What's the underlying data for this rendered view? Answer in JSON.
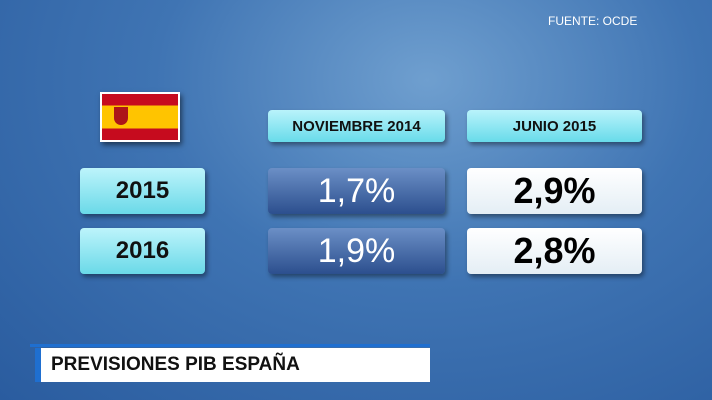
{
  "source": "FUENTE: OCDE",
  "table": {
    "columns": [
      "NOVIEMBRE 2014",
      "JUNIO 2015"
    ],
    "rows": [
      [
        "2015",
        "1,7%",
        "2,9%"
      ],
      [
        "2016",
        "1,9%",
        "2,8%"
      ]
    ]
  },
  "caption": "PREVISIONES PIB ESPAÑA"
}
